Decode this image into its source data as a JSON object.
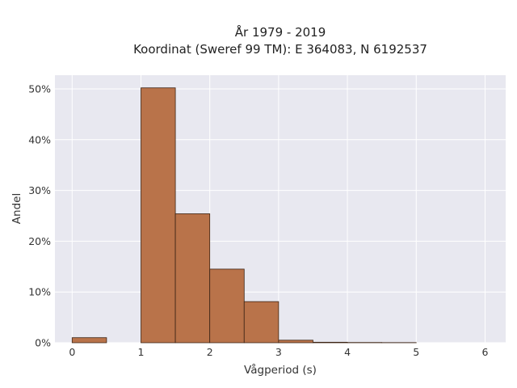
{
  "chart_data": {
    "type": "bar",
    "title_line1": "År 1979 - 2019",
    "title_line2": "Koordinat (Sweref 99 TM): E 364083, N 6192537",
    "xlabel": "Vågperiod (s)",
    "ylabel": "Andel",
    "xlim": [
      -0.25,
      6.3
    ],
    "ylim": [
      0,
      0.527
    ],
    "xticks": [
      {
        "value": 0,
        "label": "0"
      },
      {
        "value": 1,
        "label": "1"
      },
      {
        "value": 2,
        "label": "2"
      },
      {
        "value": 3,
        "label": "3"
      },
      {
        "value": 4,
        "label": "4"
      },
      {
        "value": 5,
        "label": "5"
      },
      {
        "value": 6,
        "label": "6"
      }
    ],
    "yticks": [
      {
        "value": 0,
        "label": "0%"
      },
      {
        "value": 0.1,
        "label": "10%"
      },
      {
        "value": 0.2,
        "label": "20%"
      },
      {
        "value": 0.3,
        "label": "30%"
      },
      {
        "value": 0.4,
        "label": "40%"
      },
      {
        "value": 0.5,
        "label": "50%"
      }
    ],
    "bins": [
      {
        "x0": 0.0,
        "x1": 0.5,
        "value": 0.01
      },
      {
        "x0": 1.0,
        "x1": 1.5,
        "value": 0.502
      },
      {
        "x0": 1.5,
        "x1": 2.0,
        "value": 0.254
      },
      {
        "x0": 2.0,
        "x1": 2.5,
        "value": 0.145
      },
      {
        "x0": 2.5,
        "x1": 3.0,
        "value": 0.081
      },
      {
        "x0": 3.0,
        "x1": 3.5,
        "value": 0.005
      },
      {
        "x0": 3.5,
        "x1": 4.0,
        "value": 0.001
      },
      {
        "x0": 4.0,
        "x1": 4.5,
        "value": 0.0005
      },
      {
        "x0": 4.5,
        "x1": 5.0,
        "value": 0.0003
      }
    ],
    "grid": true,
    "bar_fill": "#b9734a",
    "bar_edge": "#3d2414",
    "plot_background": "#e8e8f0"
  }
}
